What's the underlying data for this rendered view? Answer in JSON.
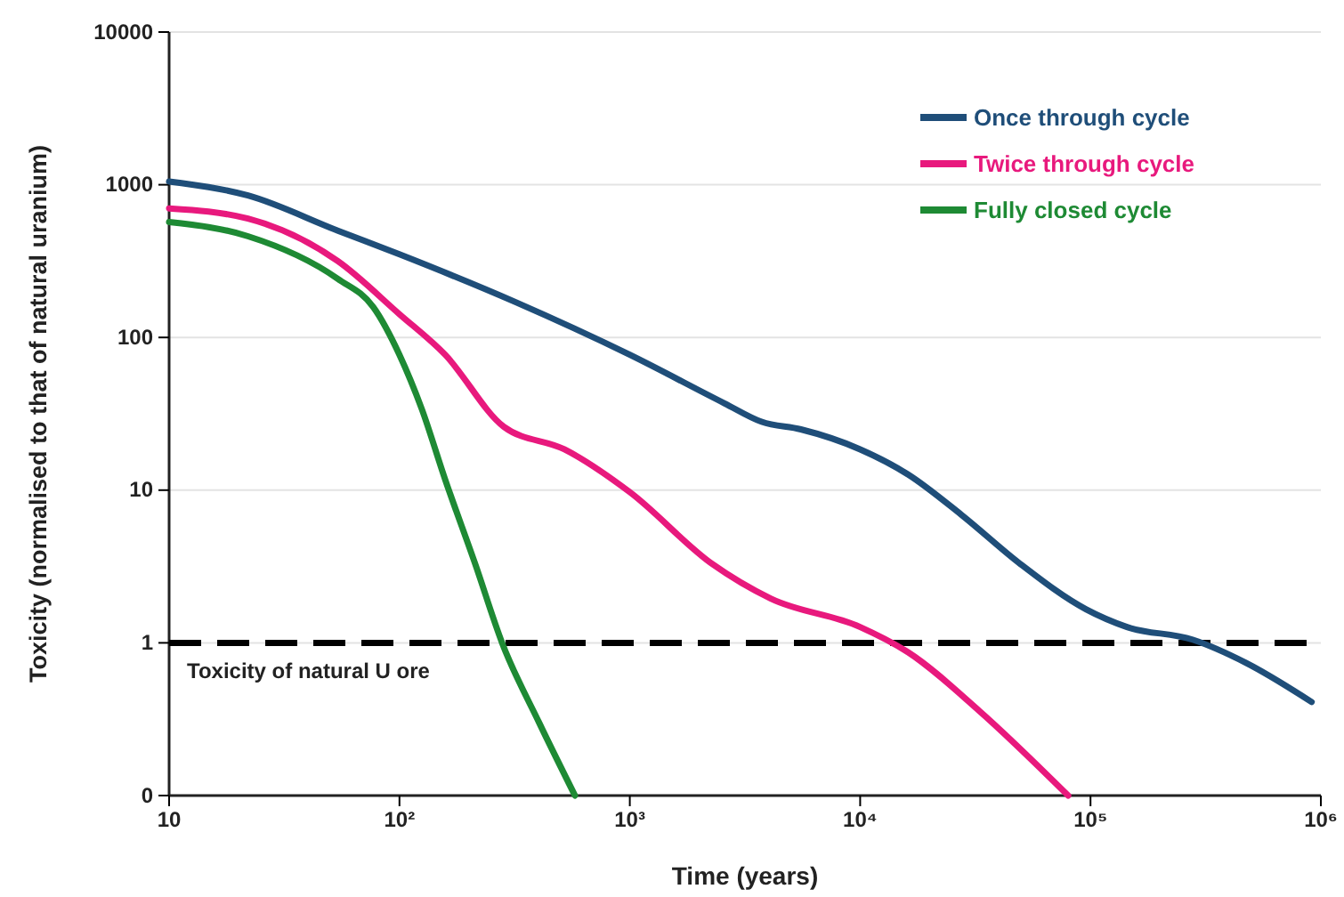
{
  "chart_data": {
    "type": "line",
    "xlabel": "Time (years)",
    "ylabel": "Toxicity (normalised to that of natural uranium)",
    "log": "xy",
    "grid": "y",
    "legend": "top right",
    "line_style": "solid",
    "marker": "none",
    "xlim": [
      10,
      1000000
    ],
    "xticks": [
      10,
      {
        "value": 100,
        "label": "10²"
      },
      {
        "value": 1000,
        "label": "10³"
      },
      {
        "value": 10000,
        "label": "10⁴"
      },
      {
        "value": 100000,
        "label": "10⁵"
      },
      {
        "value": 1000000,
        "label": "10⁶"
      }
    ],
    "ylim": [
      0.1,
      10000
    ],
    "yticks": [
      {
        "value": 0.1,
        "label": "0"
      },
      1,
      10,
      100,
      1000,
      10000
    ],
    "ref_lines": [
      {
        "axis": "y",
        "value": 1,
        "label": "Toxicity of natural U ore",
        "color": "#000000",
        "line_style": "dashed"
      }
    ],
    "series": [
      {
        "name": "Once through cycle",
        "color": "#1f4e79",
        "x": [
          10,
          22,
          54,
          100,
          320,
          1000,
          2580,
          3740,
          5530,
          10000,
          16100,
          27500,
          49400,
          95500,
          144000,
          277000,
          473000,
          912000
        ],
        "values": [
          1050,
          850,
          500,
          350,
          170,
          77,
          37,
          28,
          25,
          18.5,
          12.7,
          6.9,
          3.3,
          1.66,
          1.27,
          1.05,
          0.74,
          0.41
        ]
      },
      {
        "name": "Twice through cycle",
        "color": "#e8197d",
        "x": [
          10,
          22,
          54,
          100,
          158,
          284,
          520,
          1000,
          2270,
          4090,
          10000,
          16100,
          32800,
          80000
        ],
        "values": [
          700,
          600,
          316,
          142,
          77,
          26,
          18.5,
          9.7,
          3.3,
          1.95,
          1.27,
          0.87,
          0.36,
          0.1
        ]
      },
      {
        "name": "Fully closed cycle",
        "color": "#1e8a34",
        "x": [
          10,
          22,
          54,
          77,
          100,
          125,
          158,
          213,
          279,
          404,
          578
        ],
        "values": [
          570,
          460,
          242,
          158,
          77,
          34,
          11.7,
          3.3,
          1,
          0.3,
          0.1
        ]
      }
    ]
  }
}
